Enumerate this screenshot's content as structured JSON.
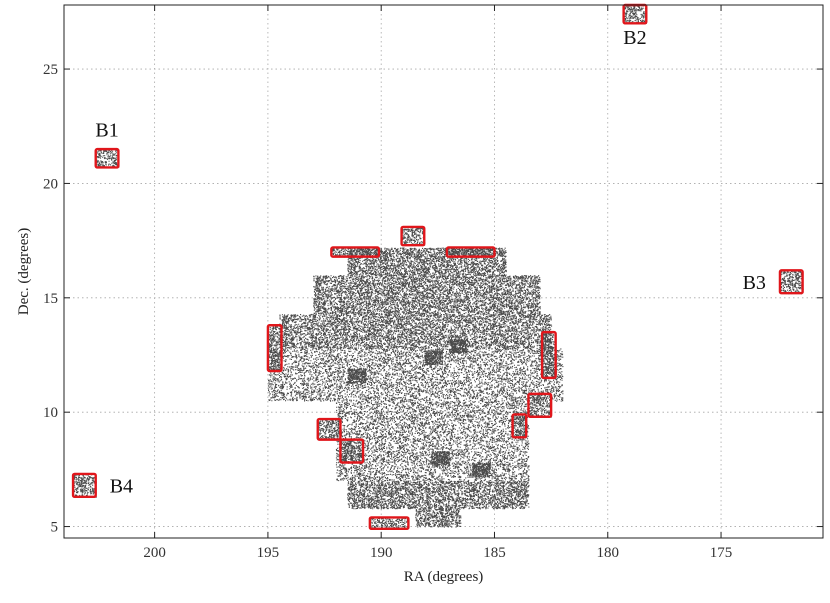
{
  "chart_data": {
    "type": "scatter",
    "title": "",
    "xlabel": "RA (degrees)",
    "ylabel": "Dec. (degrees)",
    "xlim": [
      204,
      170.5
    ],
    "ylim": [
      4.5,
      27.8
    ],
    "x_reversed": true,
    "grid": true,
    "xticks": [
      200,
      195,
      190,
      185,
      180,
      175
    ],
    "yticks": [
      5,
      10,
      15,
      20,
      25
    ],
    "colors": {
      "box_outline": "#e0161b",
      "points": "#4a4a4a"
    },
    "main_field": {
      "description_rows": [
        {
          "dec": [
            5.0,
            5.8
          ],
          "ra": [
            188.5,
            186.5
          ]
        },
        {
          "dec": [
            5.8,
            7.0
          ],
          "ra": [
            191.5,
            183.5
          ]
        },
        {
          "dec": [
            7.0,
            10.5
          ],
          "ra": [
            192.0,
            183.5
          ]
        },
        {
          "dec": [
            10.5,
            12.8
          ],
          "ra": [
            195.0,
            182.0
          ]
        },
        {
          "dec": [
            12.8,
            14.3
          ],
          "ra": [
            194.5,
            182.5
          ]
        },
        {
          "dec": [
            14.3,
            16.0
          ],
          "ra": [
            193.0,
            183.0
          ]
        },
        {
          "dec": [
            16.0,
            17.2
          ],
          "ra": [
            191.5,
            184.5
          ]
        }
      ],
      "density_peaks": [
        {
          "ra": 187.7,
          "dec": 12.4
        },
        {
          "ra": 186.6,
          "dec": 12.9
        },
        {
          "ra": 191.1,
          "dec": 11.6
        },
        {
          "ra": 187.4,
          "dec": 8.0
        },
        {
          "ra": 185.6,
          "dec": 7.5
        }
      ]
    },
    "fields": [
      {
        "label": "B1",
        "ra": [
          202.6,
          201.6
        ],
        "dec": [
          20.7,
          21.5
        ]
      },
      {
        "label": "B2",
        "ra": [
          179.3,
          178.3
        ],
        "dec": [
          27.0,
          27.8
        ]
      },
      {
        "label": "B3",
        "ra": [
          172.4,
          171.4
        ],
        "dec": [
          15.2,
          16.2
        ]
      },
      {
        "label": "B4",
        "ra": [
          203.6,
          202.6
        ],
        "dec": [
          6.3,
          7.3
        ]
      },
      {
        "label": "",
        "ra": [
          189.1,
          188.1
        ],
        "dec": [
          17.3,
          18.1
        ]
      },
      {
        "label": "",
        "ra": [
          192.2,
          190.1
        ],
        "dec": [
          16.8,
          17.2
        ]
      },
      {
        "label": "",
        "ra": [
          187.1,
          185.0
        ],
        "dec": [
          16.8,
          17.2
        ]
      },
      {
        "label": "",
        "ra": [
          195.0,
          194.4
        ],
        "dec": [
          11.8,
          13.8
        ]
      },
      {
        "label": "",
        "ra": [
          182.9,
          182.3
        ],
        "dec": [
          11.5,
          13.5
        ]
      },
      {
        "label": "",
        "ra": [
          183.5,
          182.5
        ],
        "dec": [
          9.8,
          10.8
        ]
      },
      {
        "label": "",
        "ra": [
          184.2,
          183.6
        ],
        "dec": [
          8.9,
          9.9
        ]
      },
      {
        "label": "",
        "ra": [
          192.8,
          191.8
        ],
        "dec": [
          8.8,
          9.7
        ]
      },
      {
        "label": "",
        "ra": [
          191.8,
          190.8
        ],
        "dec": [
          7.8,
          8.8
        ]
      },
      {
        "label": "",
        "ra": [
          190.5,
          188.8
        ],
        "dec": [
          4.9,
          5.4
        ]
      }
    ]
  }
}
